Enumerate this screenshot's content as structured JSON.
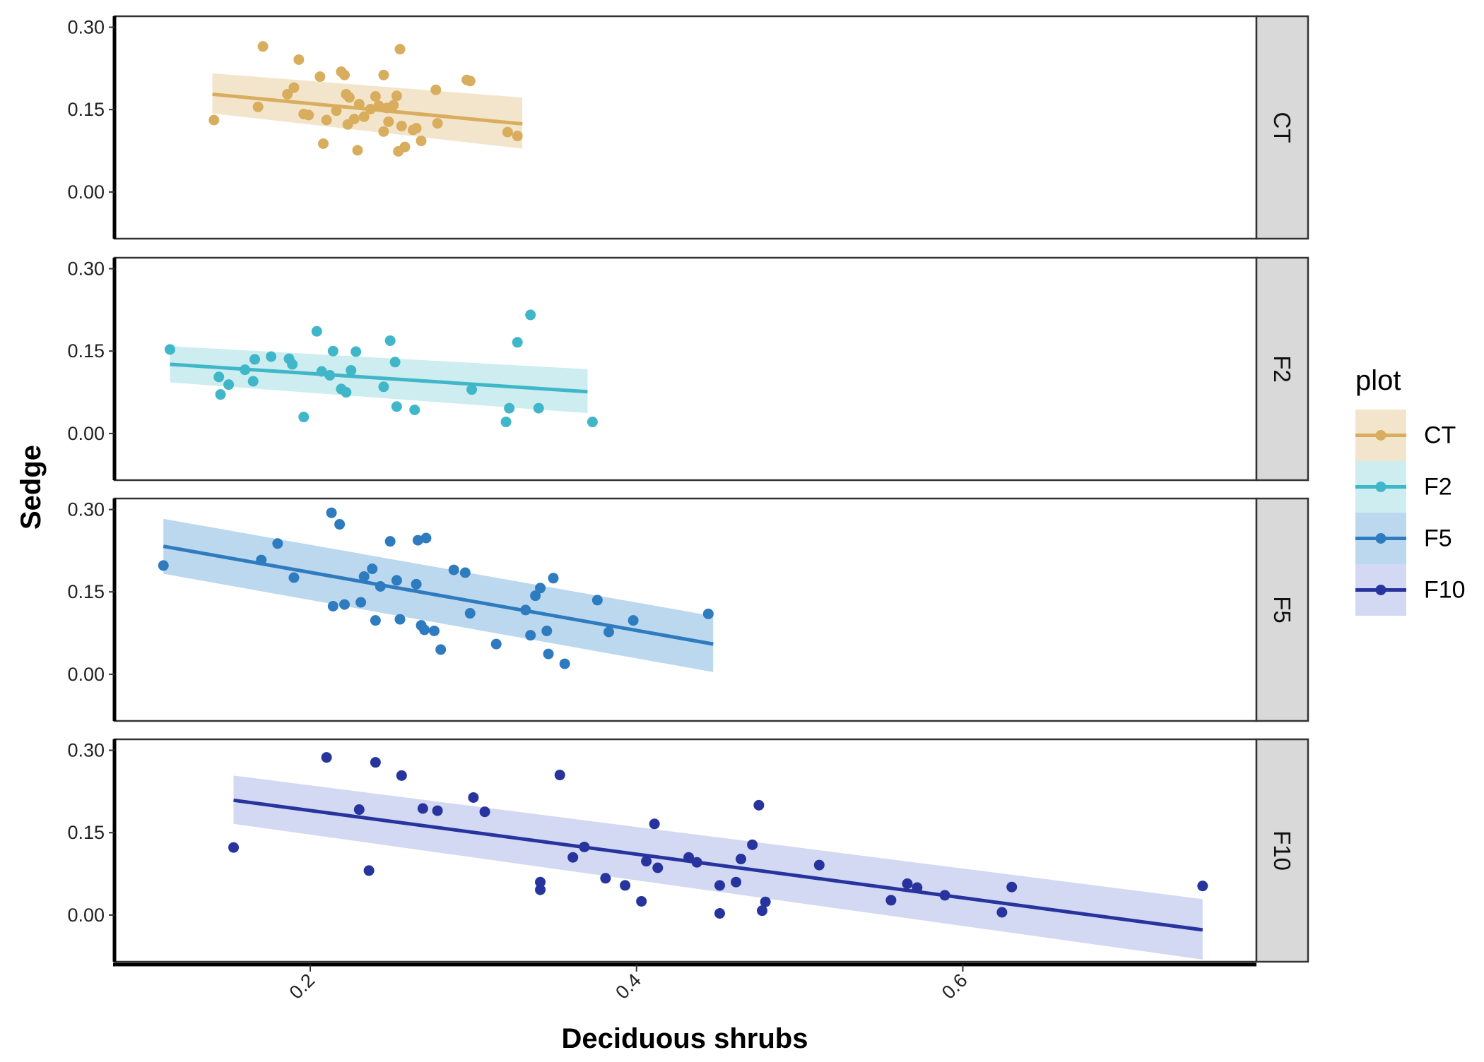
{
  "chart_data": {
    "type": "scatter",
    "facet_by": "plot",
    "xlabel": "Deciduous shrubs",
    "ylabel": "Sedge",
    "xlim": [
      0.08,
      0.78
    ],
    "ylim": [
      -0.085,
      0.32
    ],
    "x_ticks": [
      "0.2",
      "0.4",
      "0.6"
    ],
    "x_tick_values": [
      0.2,
      0.4,
      0.6
    ],
    "y_ticks": [
      "0.00",
      "0.15",
      "0.30"
    ],
    "y_tick_values": [
      0.0,
      0.15,
      0.3
    ],
    "grid": false,
    "legend": {
      "title": "plot",
      "placement": "right"
    },
    "series": [
      {
        "name": "CT",
        "color": "#D9AD5E",
        "ribbon_color": "#F3E5CC",
        "points": [
          [
            0.141,
            0.131
          ],
          [
            0.168,
            0.155
          ],
          [
            0.171,
            0.265
          ],
          [
            0.186,
            0.178
          ],
          [
            0.19,
            0.19
          ],
          [
            0.193,
            0.241
          ],
          [
            0.196,
            0.142
          ],
          [
            0.199,
            0.14
          ],
          [
            0.206,
            0.21
          ],
          [
            0.208,
            0.088
          ],
          [
            0.21,
            0.131
          ],
          [
            0.216,
            0.148
          ],
          [
            0.219,
            0.219
          ],
          [
            0.221,
            0.213
          ],
          [
            0.222,
            0.178
          ],
          [
            0.223,
            0.123
          ],
          [
            0.224,
            0.172
          ],
          [
            0.227,
            0.133
          ],
          [
            0.229,
            0.076
          ],
          [
            0.23,
            0.16
          ],
          [
            0.233,
            0.137
          ],
          [
            0.237,
            0.151
          ],
          [
            0.24,
            0.174
          ],
          [
            0.242,
            0.157
          ],
          [
            0.245,
            0.213
          ],
          [
            0.245,
            0.11
          ],
          [
            0.247,
            0.153
          ],
          [
            0.248,
            0.128
          ],
          [
            0.251,
            0.158
          ],
          [
            0.253,
            0.175
          ],
          [
            0.254,
            0.074
          ],
          [
            0.255,
            0.26
          ],
          [
            0.256,
            0.12
          ],
          [
            0.258,
            0.082
          ],
          [
            0.263,
            0.113
          ],
          [
            0.265,
            0.116
          ],
          [
            0.268,
            0.093
          ],
          [
            0.277,
            0.186
          ],
          [
            0.278,
            0.125
          ],
          [
            0.296,
            0.204
          ],
          [
            0.298,
            0.202
          ],
          [
            0.321,
            0.109
          ],
          [
            0.327,
            0.102
          ]
        ],
        "fit": {
          "x": [
            0.14,
            0.33
          ],
          "y": [
            0.178,
            0.124
          ]
        },
        "ci_lower": [
          0.143,
          0.079
        ],
        "ci_upper": [
          0.216,
          0.172
        ]
      },
      {
        "name": "F2",
        "color": "#3FB7C9",
        "ribbon_color": "#CDEDF0",
        "points": [
          [
            0.114,
            0.153
          ],
          [
            0.144,
            0.103
          ],
          [
            0.145,
            0.071
          ],
          [
            0.15,
            0.089
          ],
          [
            0.16,
            0.116
          ],
          [
            0.165,
            0.095
          ],
          [
            0.166,
            0.135
          ],
          [
            0.176,
            0.14
          ],
          [
            0.187,
            0.136
          ],
          [
            0.189,
            0.126
          ],
          [
            0.196,
            0.03
          ],
          [
            0.204,
            0.186
          ],
          [
            0.207,
            0.113
          ],
          [
            0.212,
            0.106
          ],
          [
            0.214,
            0.15
          ],
          [
            0.219,
            0.081
          ],
          [
            0.222,
            0.075
          ],
          [
            0.225,
            0.115
          ],
          [
            0.228,
            0.149
          ],
          [
            0.245,
            0.085
          ],
          [
            0.249,
            0.169
          ],
          [
            0.252,
            0.13
          ],
          [
            0.253,
            0.049
          ],
          [
            0.264,
            0.043
          ],
          [
            0.299,
            0.08
          ],
          [
            0.32,
            0.021
          ],
          [
            0.322,
            0.046
          ],
          [
            0.327,
            0.166
          ],
          [
            0.335,
            0.216
          ],
          [
            0.34,
            0.046
          ],
          [
            0.373,
            0.021
          ]
        ],
        "fit": {
          "x": [
            0.114,
            0.37
          ],
          "y": [
            0.126,
            0.076
          ]
        },
        "ci_lower": [
          0.093,
          0.037
        ],
        "ci_upper": [
          0.159,
          0.117
        ]
      },
      {
        "name": "F5",
        "color": "#2E7BBF",
        "ribbon_color": "#BBD8EE",
        "points": [
          [
            0.11,
            0.198
          ],
          [
            0.17,
            0.208
          ],
          [
            0.18,
            0.238
          ],
          [
            0.19,
            0.176
          ],
          [
            0.213,
            0.294
          ],
          [
            0.214,
            0.124
          ],
          [
            0.218,
            0.273
          ],
          [
            0.221,
            0.127
          ],
          [
            0.231,
            0.131
          ],
          [
            0.233,
            0.178
          ],
          [
            0.238,
            0.192
          ],
          [
            0.24,
            0.098
          ],
          [
            0.243,
            0.16
          ],
          [
            0.249,
            0.242
          ],
          [
            0.253,
            0.171
          ],
          [
            0.255,
            0.1
          ],
          [
            0.265,
            0.164
          ],
          [
            0.266,
            0.244
          ],
          [
            0.268,
            0.089
          ],
          [
            0.27,
            0.081
          ],
          [
            0.271,
            0.248
          ],
          [
            0.276,
            0.079
          ],
          [
            0.28,
            0.045
          ],
          [
            0.288,
            0.19
          ],
          [
            0.295,
            0.185
          ],
          [
            0.298,
            0.111
          ],
          [
            0.314,
            0.055
          ],
          [
            0.332,
            0.117
          ],
          [
            0.335,
            0.071
          ],
          [
            0.338,
            0.143
          ],
          [
            0.341,
            0.157
          ],
          [
            0.345,
            0.079
          ],
          [
            0.346,
            0.037
          ],
          [
            0.349,
            0.175
          ],
          [
            0.356,
            0.019
          ],
          [
            0.376,
            0.135
          ],
          [
            0.383,
            0.077
          ],
          [
            0.398,
            0.098
          ],
          [
            0.444,
            0.11
          ]
        ],
        "fit": {
          "x": [
            0.11,
            0.447
          ],
          "y": [
            0.233,
            0.055
          ]
        },
        "ci_lower": [
          0.183,
          0.004
        ],
        "ci_upper": [
          0.283,
          0.106
        ]
      },
      {
        "name": "F10",
        "color": "#27349E",
        "ribbon_color": "#D3D8F3",
        "points": [
          [
            0.153,
            0.123
          ],
          [
            0.21,
            0.287
          ],
          [
            0.23,
            0.192
          ],
          [
            0.236,
            0.081
          ],
          [
            0.24,
            0.278
          ],
          [
            0.256,
            0.254
          ],
          [
            0.269,
            0.194
          ],
          [
            0.278,
            0.19
          ],
          [
            0.3,
            0.214
          ],
          [
            0.307,
            0.188
          ],
          [
            0.341,
            0.06
          ],
          [
            0.341,
            0.046
          ],
          [
            0.353,
            0.255
          ],
          [
            0.361,
            0.105
          ],
          [
            0.368,
            0.124
          ],
          [
            0.381,
            0.067
          ],
          [
            0.393,
            0.054
          ],
          [
            0.403,
            0.025
          ],
          [
            0.406,
            0.098
          ],
          [
            0.411,
            0.166
          ],
          [
            0.413,
            0.086
          ],
          [
            0.432,
            0.105
          ],
          [
            0.437,
            0.096
          ],
          [
            0.451,
            0.054
          ],
          [
            0.451,
            0.003
          ],
          [
            0.461,
            0.06
          ],
          [
            0.464,
            0.102
          ],
          [
            0.471,
            0.128
          ],
          [
            0.475,
            0.2
          ],
          [
            0.477,
            0.008
          ],
          [
            0.479,
            0.024
          ],
          [
            0.512,
            0.091
          ],
          [
            0.556,
            0.027
          ],
          [
            0.566,
            0.057
          ],
          [
            0.572,
            0.05
          ],
          [
            0.589,
            0.036
          ],
          [
            0.624,
            0.005
          ],
          [
            0.63,
            0.051
          ],
          [
            0.747,
            0.053
          ]
        ],
        "fit": {
          "x": [
            0.153,
            0.747
          ],
          "y": [
            0.209,
            -0.027
          ]
        },
        "ci_lower": [
          0.166,
          -0.081
        ],
        "ci_upper": [
          0.254,
          0.029
        ]
      }
    ]
  }
}
